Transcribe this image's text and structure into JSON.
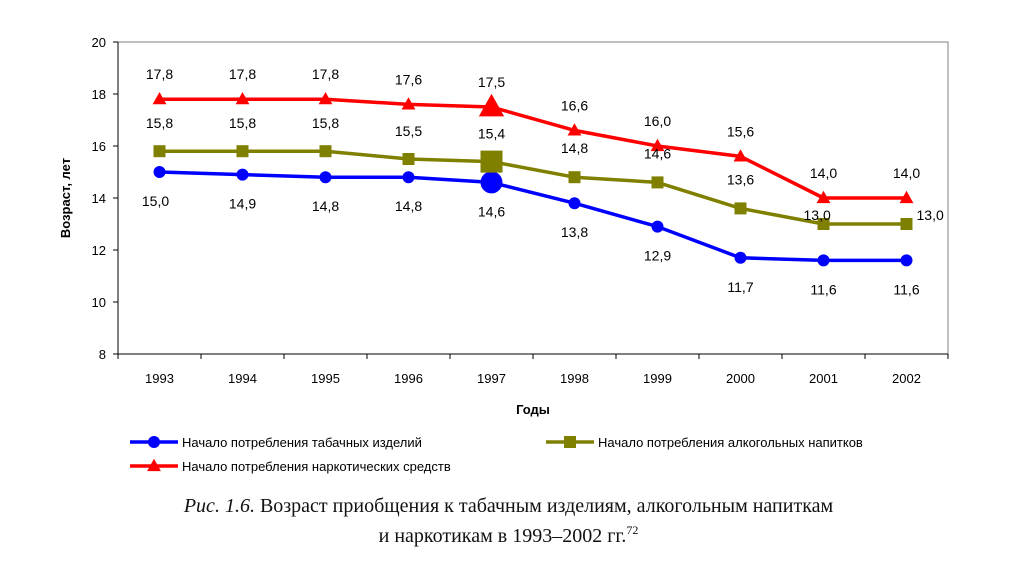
{
  "chart_data": {
    "type": "line",
    "x": [
      "1993",
      "1994",
      "1995",
      "1996",
      "1997",
      "1998",
      "1999",
      "2000",
      "2001",
      "2002"
    ],
    "series": [
      {
        "name": "Начало потребления табачных изделий",
        "color": "#0000ff",
        "marker": "circle",
        "values": [
          15.0,
          14.9,
          14.8,
          14.8,
          14.6,
          13.8,
          12.9,
          11.7,
          11.6,
          11.6
        ],
        "labels": [
          "15,0",
          "14,9",
          "14,8",
          "14,8",
          "14,6",
          "13,8",
          "12,9",
          "11,7",
          "11,6",
          "11,6"
        ]
      },
      {
        "name": "Начало потребления алкогольных напитков",
        "color": "#808000",
        "marker": "square",
        "values": [
          15.8,
          15.8,
          15.8,
          15.5,
          15.4,
          14.8,
          14.6,
          13.6,
          13.0,
          13.0
        ],
        "labels": [
          "15,8",
          "15,8",
          "15,8",
          "15,5",
          "15,4",
          "14,8",
          "14,6",
          "13,6",
          "13,0",
          "13,0"
        ]
      },
      {
        "name": "Начало потребления наркотических средств",
        "color": "#ff0000",
        "marker": "triangle",
        "values": [
          17.8,
          17.8,
          17.8,
          17.6,
          17.5,
          16.6,
          16.0,
          15.6,
          14.0,
          14.0
        ],
        "labels": [
          "17,8",
          "17,8",
          "17,8",
          "17,6",
          "17,5",
          "16,6",
          "16,0",
          "15,6",
          "14,0",
          "14,0"
        ]
      }
    ],
    "xlabel": "Годы",
    "ylabel": "Возраст, лет",
    "ylim": [
      8,
      20
    ],
    "yticks": [
      "8",
      "10",
      "12",
      "14",
      "16",
      "18",
      "20"
    ],
    "grid": false,
    "highlight": "1997",
    "legend_position": "bottom"
  },
  "caption": {
    "label": "Рис. 1.6.",
    "line1": "Возраст приобщения к табачным изделиям, алкогольным напиткам",
    "line2": "и наркотикам в 1993–2002 гг.",
    "footnote": "72"
  }
}
